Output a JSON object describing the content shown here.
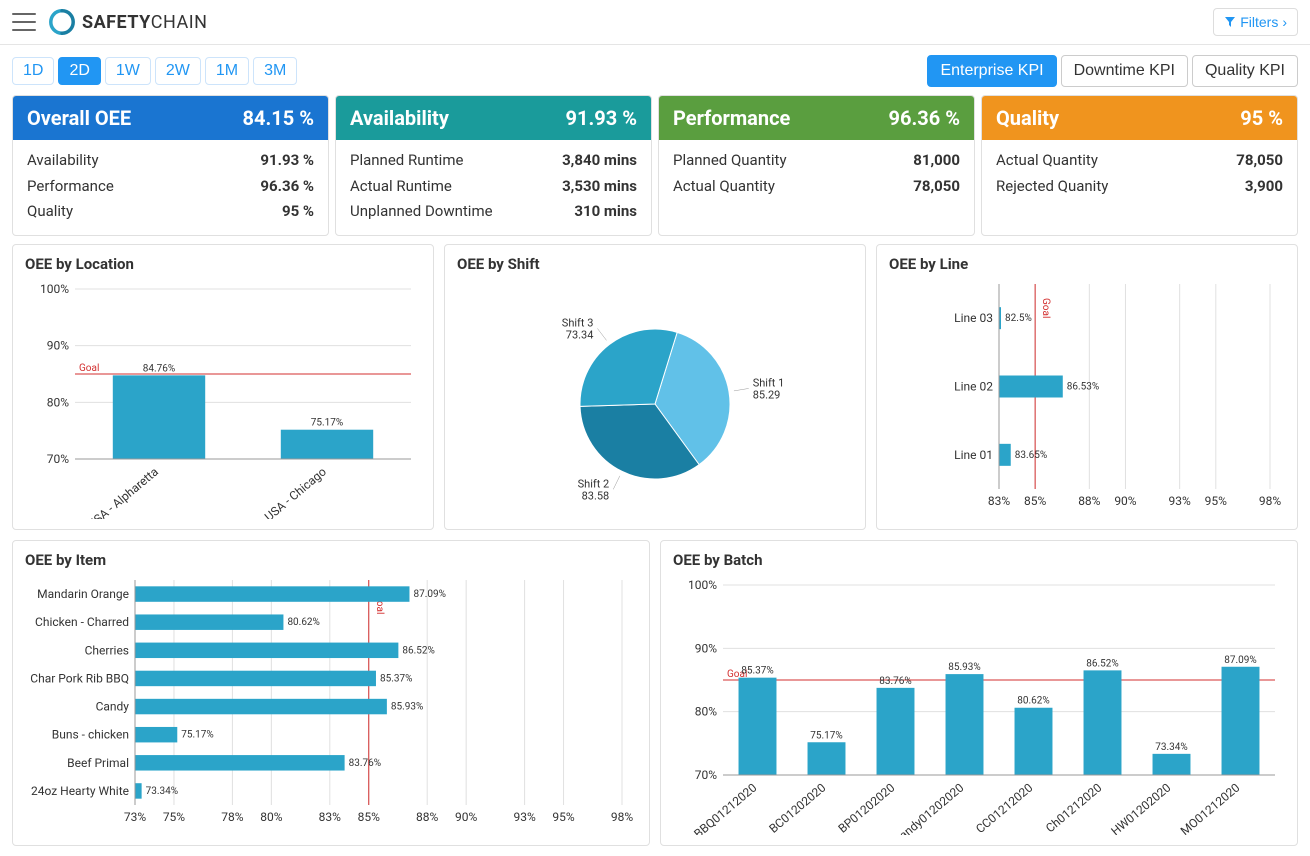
{
  "header": {
    "brand_bold": "SAFETY",
    "brand_thin": "CHAIN",
    "filters_label": "Filters"
  },
  "time_tabs": [
    "1D",
    "2D",
    "1W",
    "2W",
    "1M",
    "3M"
  ],
  "time_tab_active": 1,
  "kpi_tabs": [
    "Enterprise KPI",
    "Downtime KPI",
    "Quality KPI"
  ],
  "kpi_tab_active": 0,
  "kpi_cards": [
    {
      "title": "Overall OEE",
      "value": "84.15 %",
      "color": "#1a75d1",
      "rows": [
        {
          "label": "Availability",
          "value": "91.93 %"
        },
        {
          "label": "Performance",
          "value": "96.36 %"
        },
        {
          "label": "Quality",
          "value": "95 %"
        }
      ]
    },
    {
      "title": "Availability",
      "value": "91.93 %",
      "color": "#1a9b9b",
      "rows": [
        {
          "label": "Planned Runtime",
          "value": "3,840 mins"
        },
        {
          "label": "Actual Runtime",
          "value": "3,530 mins"
        },
        {
          "label": "Unplanned Downtime",
          "value": "310 mins"
        }
      ]
    },
    {
      "title": "Performance",
      "value": "96.36 %",
      "color": "#5a9e3f",
      "rows": [
        {
          "label": "Planned Quantity",
          "value": "81,000"
        },
        {
          "label": "Actual Quantity",
          "value": "78,050"
        }
      ]
    },
    {
      "title": "Quality",
      "value": "95 %",
      "color": "#f0941e",
      "rows": [
        {
          "label": "Actual Quantity",
          "value": "78,050"
        },
        {
          "label": "Rejected Quanity",
          "value": "3,900"
        }
      ]
    }
  ],
  "colors": {
    "bar": "#2ba4c9",
    "bar_dark": "#1a7fa3",
    "grid": "#e0e0e0",
    "axis": "#999",
    "goal": "#d32f2f"
  },
  "oee_location": {
    "title": "OEE by Location",
    "type": "bar",
    "goal": 85,
    "ylim": [
      70,
      100
    ],
    "ytick_step": 10,
    "categories": [
      "USA - Alpharetta",
      "USA - Chicago"
    ],
    "values": [
      84.76,
      75.17
    ]
  },
  "oee_shift": {
    "title": "OEE by Shift",
    "type": "pie",
    "slices": [
      {
        "label": "Shift 1",
        "value": 85.29,
        "color": "#61c1e8"
      },
      {
        "label": "Shift 2",
        "value": 83.58,
        "color": "#1a7fa3"
      },
      {
        "label": "Shift 3",
        "value": 73.34,
        "color": "#2ba4c9"
      }
    ]
  },
  "oee_line": {
    "title": "OEE by Line",
    "type": "hbar",
    "goal": 85,
    "xlim": [
      83,
      98
    ],
    "xticks": [
      83,
      85,
      88,
      90,
      93,
      95,
      98
    ],
    "categories": [
      "Line 03",
      "Line 02",
      "Line 01"
    ],
    "values": [
      82.5,
      86.53,
      83.65
    ]
  },
  "oee_item": {
    "title": "OEE by Item",
    "type": "hbar",
    "goal": 85,
    "xlim": [
      73,
      98
    ],
    "xticks": [
      73,
      75,
      78,
      80,
      83,
      85,
      88,
      90,
      93,
      95,
      98
    ],
    "categories": [
      "Mandarin Orange",
      "Chicken - Charred",
      "Cherries",
      "Char Pork Rib BBQ",
      "Candy",
      "Buns - chicken",
      "Beef Primal",
      "24oz Hearty White"
    ],
    "values": [
      87.09,
      80.62,
      86.52,
      85.37,
      85.93,
      75.17,
      83.76,
      73.34
    ]
  },
  "oee_batch": {
    "title": "OEE by Batch",
    "type": "bar",
    "goal": 85,
    "ylim": [
      70,
      100
    ],
    "ytick_step": 10,
    "categories": [
      "BBQ01212020",
      "BC01202020",
      "BP01202020",
      "Candy01202020",
      "CC01212020",
      "Ch01212020",
      "HW01202020",
      "MO01212020"
    ],
    "values": [
      85.37,
      75.17,
      83.76,
      85.93,
      80.62,
      86.52,
      73.34,
      87.09
    ]
  }
}
